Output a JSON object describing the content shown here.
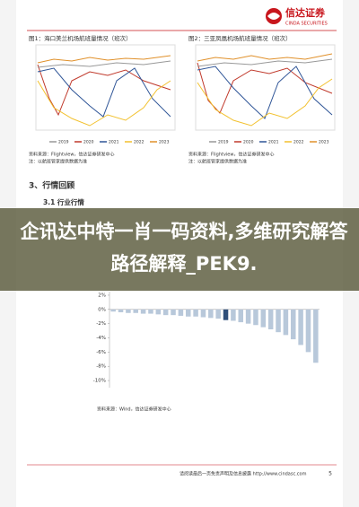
{
  "header": {
    "logo_cn": "信达证券",
    "logo_en": "CINDA SECURITIES"
  },
  "figures": [
    {
      "title": "图1：海口美兰机场航班量情况（班次）",
      "legend": [
        "2019",
        "2020",
        "2021",
        "2022",
        "2023"
      ],
      "source": "资料来源：Flightview，信达证券研发中心",
      "note": "注：以航班管家提供数据为准"
    },
    {
      "title": "图2：三亚凤凰机场航班量情况（班次）",
      "legend": [
        "2019",
        "2020",
        "2021",
        "2022",
        "2023"
      ],
      "source": "资料来源：Flightview，信达证券研发中心",
      "note": "注：以航班管家提供数据为准"
    }
  ],
  "section": "3、行情回顾",
  "subsection": "3.1 行业行情",
  "overlay": "企讯达中特一肖一码资料,多维研究解答路径解释_PEK9.",
  "bar_chart": {
    "type": "bar",
    "values": [
      -0.3,
      -0.4,
      -0.5,
      -0.5,
      -0.6,
      -0.6,
      -0.7,
      -0.8,
      -0.8,
      -0.9,
      -1.0,
      -1.0,
      -1.1,
      -1.2,
      -1.3,
      -1.5,
      -1.6,
      -1.8,
      -2.0,
      -2.2,
      -2.5,
      -2.8,
      -3.2,
      -3.6,
      -4.2,
      -5.0,
      -6.0,
      -7.5
    ],
    "colors": [
      "#b8c8da",
      "#b8c8da",
      "#b8c8da",
      "#b8c8da",
      "#b8c8da",
      "#b8c8da",
      "#b8c8da",
      "#b8c8da",
      "#b8c8da",
      "#b8c8da",
      "#b8c8da",
      "#b8c8da",
      "#b8c8da",
      "#b8c8da",
      "#b8c8da",
      "#2f4f7a",
      "#b8c8da",
      "#b8c8da",
      "#b8c8da",
      "#b8c8da",
      "#b8c8da",
      "#b8c8da",
      "#b8c8da",
      "#b8c8da",
      "#b8c8da",
      "#b8c8da",
      "#b8c8da",
      "#b8c8da"
    ],
    "ylim": [
      -11,
      2.5
    ],
    "yticks": [
      {
        "value": 2,
        "label": "2%"
      },
      {
        "value": 0,
        "label": "0%"
      },
      {
        "value": -2,
        "label": "-2%"
      },
      {
        "value": -4,
        "label": "-4%"
      },
      {
        "value": -6,
        "label": "-6%"
      },
      {
        "value": -8,
        "label": "-8%"
      },
      {
        "value": -10,
        "label": "-10%"
      }
    ],
    "source": "资料来源：Wind，信达证券研发中心"
  },
  "footer": {
    "disclaimer": "请阅读最后一页免责声明及信息披露 http://www.cindasc.com",
    "page": "5"
  }
}
